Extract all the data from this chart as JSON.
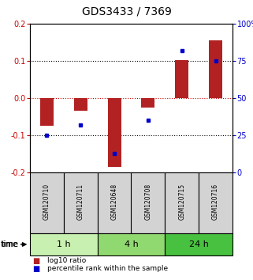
{
  "title": "GDS3433 / 7369",
  "samples": [
    "GSM120710",
    "GSM120711",
    "GSM120648",
    "GSM120708",
    "GSM120715",
    "GSM120716"
  ],
  "log10_ratio": [
    -0.075,
    -0.035,
    -0.185,
    -0.025,
    0.103,
    0.155
  ],
  "percentile_rank": [
    25,
    32,
    13,
    35,
    82,
    75
  ],
  "groups": [
    {
      "label": "1 h",
      "indices": [
        0,
        1
      ],
      "color": "#c8f0b0"
    },
    {
      "label": "4 h",
      "indices": [
        2,
        3
      ],
      "color": "#90d870"
    },
    {
      "label": "24 h",
      "indices": [
        4,
        5
      ],
      "color": "#48c040"
    }
  ],
  "ylim_left": [
    -0.2,
    0.2
  ],
  "ylim_right": [
    0,
    100
  ],
  "yticks_left": [
    -0.2,
    -0.1,
    0.0,
    0.1,
    0.2
  ],
  "yticks_right": [
    0,
    25,
    50,
    75,
    100
  ],
  "ytick_labels_right": [
    "0",
    "25",
    "50",
    "75",
    "100%"
  ],
  "bar_color": "#b22222",
  "dot_color": "#0000cc",
  "bar_width": 0.4,
  "zero_line_color": "#cc0000",
  "bg_color": "#ffffff",
  "label_color_left": "#cc0000",
  "label_color_right": "#0000cc",
  "sample_box_color": "#d3d3d3",
  "tick_label_size": 7,
  "title_fontsize": 10
}
